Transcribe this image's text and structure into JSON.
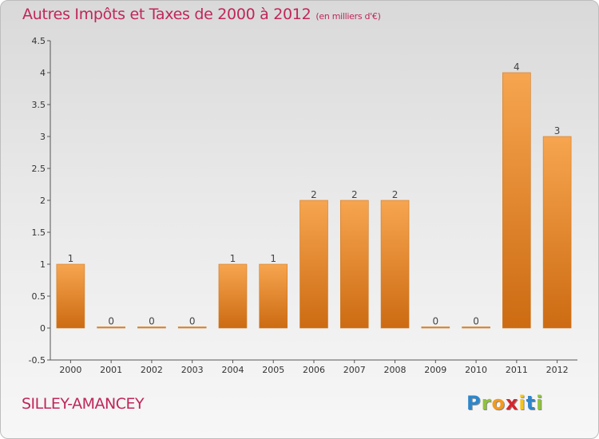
{
  "title": "Autres Impôts et Taxes de 2000 à 2012",
  "subtitle": "(en milliers d'€)",
  "place": "SILLEY-AMANCEY",
  "logo": {
    "letters": [
      "P",
      "r",
      "o",
      "x",
      "i",
      "t",
      "i"
    ],
    "colors": [
      "#2e86c9",
      "#8fc43a",
      "#f39a1e",
      "#d4262d",
      "#f3c41e",
      "#2e86c9",
      "#8fc43a"
    ]
  },
  "colors": {
    "bar_light": "#f7a550",
    "bar_dark": "#cc6b12",
    "title": "#c0265a"
  },
  "chart_data": {
    "type": "bar",
    "categories": [
      "2000",
      "2001",
      "2002",
      "2003",
      "2004",
      "2005",
      "2006",
      "2007",
      "2008",
      "2009",
      "2010",
      "2011",
      "2012"
    ],
    "values": [
      1,
      0,
      0,
      0,
      1,
      1,
      2,
      2,
      2,
      0,
      0,
      4,
      3
    ],
    "data_labels": [
      "1",
      "0",
      "0",
      "0",
      "1",
      "1",
      "2",
      "2",
      "2",
      "0",
      "0",
      "4",
      "3"
    ],
    "y_ticks": [
      -0.5,
      0,
      0.5,
      1,
      1.5,
      2,
      2.5,
      3,
      3.5,
      4,
      4.5
    ],
    "y_tick_labels": [
      "-0.5",
      "0",
      "0.5",
      "1",
      "1.5",
      "2",
      "2.5",
      "3",
      "3.5",
      "4",
      "4.5"
    ],
    "ylim": [
      -0.5,
      4.5
    ],
    "grid": false,
    "xlabel": "",
    "ylabel": ""
  }
}
